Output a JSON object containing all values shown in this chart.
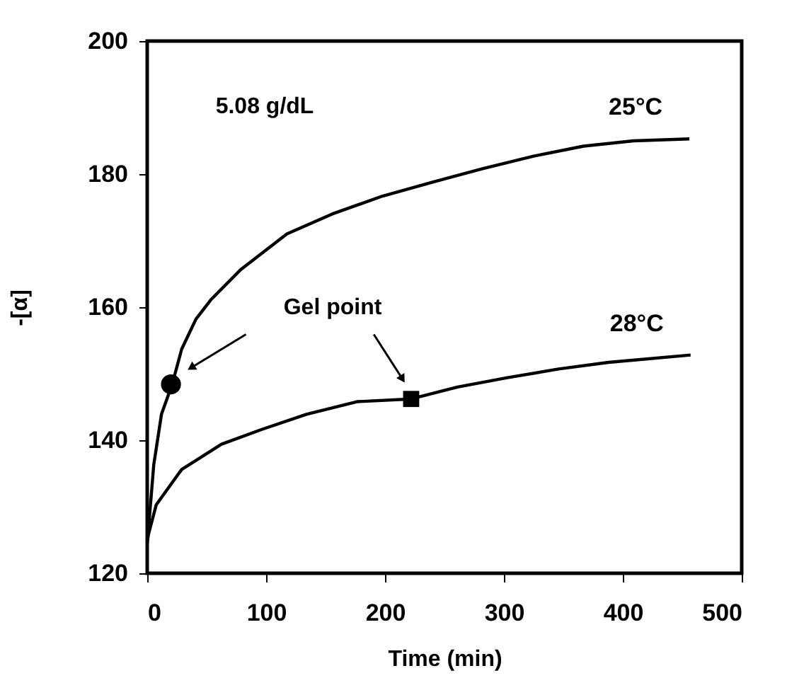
{
  "chart_data": {
    "type": "line",
    "xlabel": "Time (min)",
    "ylabel": "-[α]",
    "xlim": [
      0,
      500
    ],
    "xticks": [
      0,
      100,
      200,
      300,
      400,
      500
    ],
    "ylim": [
      120,
      200
    ],
    "yticks": [
      120,
      140,
      160,
      180,
      200
    ],
    "grid": false,
    "legend": false,
    "marker": "none",
    "line_style": "solid",
    "annotations": [
      "5.08 g/dL",
      "Gel point"
    ],
    "series": [
      {
        "name": "25°C",
        "color": "#000000",
        "x": [
          0,
          1,
          5.5,
          12,
          21,
          29,
          41,
          54,
          79,
          117.5,
          155.5,
          198,
          240,
          282,
          325,
          367,
          409,
          456
        ],
        "values": [
          125,
          126.5,
          136.3,
          143.9,
          148.4,
          153.7,
          158.2,
          161.2,
          165.7,
          171.0,
          174.0,
          176.7,
          178.8,
          180.8,
          182.7,
          184.2,
          185.0,
          185.3
        ]
      },
      {
        "name": "28°C",
        "color": "#000000",
        "x": [
          0,
          1,
          7.6,
          29,
          62.5,
          96,
          134,
          177,
          222,
          261,
          303,
          346,
          388,
          457
        ],
        "values": [
          124.5,
          125.8,
          130.3,
          135.6,
          139.4,
          141.6,
          143.9,
          145.8,
          146.2,
          148.0,
          149.4,
          150.7,
          151.7,
          152.8
        ]
      },
      {
        "type": "scatter",
        "marker": "circle",
        "color": "#000000",
        "x": [
          20
        ],
        "values": [
          148.4
        ]
      },
      {
        "type": "scatter",
        "marker": "square",
        "color": "#000000",
        "x": [
          222
        ],
        "values": [
          146.2
        ]
      }
    ]
  }
}
